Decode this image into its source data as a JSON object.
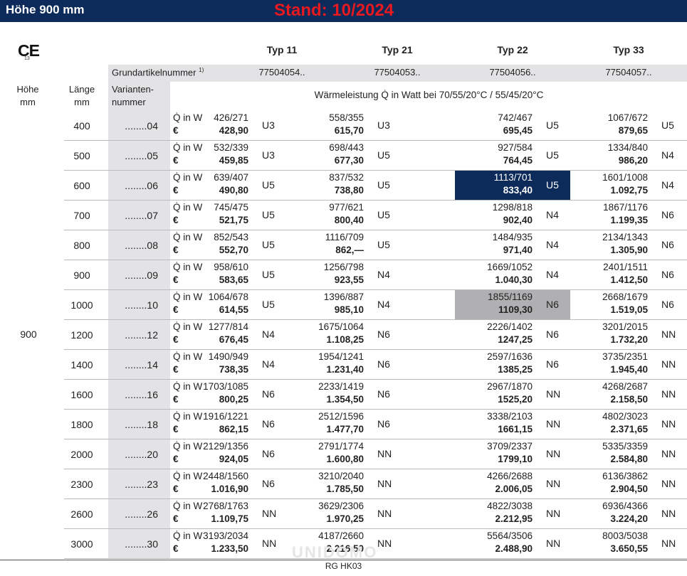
{
  "header": {
    "title": "Höhe 900 mm",
    "stand": "Stand: 10/2024"
  },
  "ce": {
    "mark": "CE",
    "sub": "13"
  },
  "types": [
    "Typ 11",
    "Typ 21",
    "Typ 22",
    "Typ 33"
  ],
  "grund": {
    "label": "Grundartikelnummer",
    "sup": "1)",
    "values": [
      "77504054..",
      "77504053..",
      "77504056..",
      "77504057.."
    ]
  },
  "cols": {
    "hoehe": "Höhe",
    "hoehe_unit": "mm",
    "laenge": "Länge",
    "laenge_unit": "mm",
    "variant1": "Varianten-",
    "variant2": "nummer"
  },
  "waerme": "Wärmeleistung Q̇ in Watt bei 70/55/20°C / 55/45/20°C",
  "hoehe_value": "900",
  "q_label": "Q̇ in W",
  "eur_label": "€",
  "rows": [
    {
      "len": "400",
      "var": "........04",
      "c": [
        [
          "426/271",
          "428,90",
          "U3"
        ],
        [
          "558/355",
          "615,70",
          "U3"
        ],
        [
          "742/467",
          "695,45",
          "U5"
        ],
        [
          "1067/672",
          "879,65",
          "U5"
        ]
      ]
    },
    {
      "len": "500",
      "var": "........05",
      "c": [
        [
          "532/339",
          "459,85",
          "U3"
        ],
        [
          "698/443",
          "677,30",
          "U5"
        ],
        [
          "927/584",
          "764,45",
          "U5"
        ],
        [
          "1334/840",
          "986,20",
          "N4"
        ]
      ]
    },
    {
      "len": "600",
      "var": "........06",
      "c": [
        [
          "639/407",
          "490,80",
          "U5"
        ],
        [
          "837/532",
          "738,80",
          "U5"
        ],
        [
          "1113/701",
          "833,40",
          "U5"
        ],
        [
          "1601/1008",
          "1.092,75",
          "N4"
        ]
      ]
    },
    {
      "len": "700",
      "var": "........07",
      "c": [
        [
          "745/475",
          "521,75",
          "U5"
        ],
        [
          "977/621",
          "800,40",
          "U5"
        ],
        [
          "1298/818",
          "902,40",
          "N4"
        ],
        [
          "1867/1176",
          "1.199,35",
          "N6"
        ]
      ]
    },
    {
      "len": "800",
      "var": "........08",
      "c": [
        [
          "852/543",
          "552,70",
          "U5"
        ],
        [
          "1116/709",
          "862,—",
          "U5"
        ],
        [
          "1484/935",
          "971,40",
          "N4"
        ],
        [
          "2134/1343",
          "1.305,90",
          "N6"
        ]
      ]
    },
    {
      "len": "900",
      "var": "........09",
      "c": [
        [
          "958/610",
          "583,65",
          "U5"
        ],
        [
          "1256/798",
          "923,55",
          "N4"
        ],
        [
          "1669/1052",
          "1.040,30",
          "N4"
        ],
        [
          "2401/1511",
          "1.412,50",
          "N6"
        ]
      ]
    },
    {
      "len": "1000",
      "var": "........10",
      "c": [
        [
          "1064/678",
          "614,55",
          "U5"
        ],
        [
          "1396/887",
          "985,10",
          "N4"
        ],
        [
          "1855/1169",
          "1109,30",
          "N6"
        ],
        [
          "2668/1679",
          "1.519,05",
          "N6"
        ]
      ]
    },
    {
      "len": "1200",
      "var": "........12",
      "c": [
        [
          "1277/814",
          "676,45",
          "N4"
        ],
        [
          "1675/1064",
          "1.108,25",
          "N6"
        ],
        [
          "2226/1402",
          "1247,25",
          "N6"
        ],
        [
          "3201/2015",
          "1.732,20",
          "NN"
        ]
      ]
    },
    {
      "len": "1400",
      "var": "........14",
      "c": [
        [
          "1490/949",
          "738,35",
          "N4"
        ],
        [
          "1954/1241",
          "1.231,40",
          "N6"
        ],
        [
          "2597/1636",
          "1385,25",
          "N6"
        ],
        [
          "3735/2351",
          "1.945,40",
          "NN"
        ]
      ]
    },
    {
      "len": "1600",
      "var": "........16",
      "c": [
        [
          "1703/1085",
          "800,25",
          "N6"
        ],
        [
          "2233/1419",
          "1.354,50",
          "N6"
        ],
        [
          "2967/1870",
          "1525,20",
          "NN"
        ],
        [
          "4268/2687",
          "2.158,50",
          "NN"
        ]
      ]
    },
    {
      "len": "1800",
      "var": "........18",
      "c": [
        [
          "1916/1221",
          "862,15",
          "N6"
        ],
        [
          "2512/1596",
          "1.477,70",
          "N6"
        ],
        [
          "3338/2103",
          "1661,15",
          "NN"
        ],
        [
          "4802/3023",
          "2.371,65",
          "NN"
        ]
      ]
    },
    {
      "len": "2000",
      "var": "........20",
      "c": [
        [
          "2129/1356",
          "924,05",
          "N6"
        ],
        [
          "2791/1774",
          "1.600,80",
          "NN"
        ],
        [
          "3709/2337",
          "1799,10",
          "NN"
        ],
        [
          "5335/3359",
          "2.584,80",
          "NN"
        ]
      ]
    },
    {
      "len": "2300",
      "var": "........23",
      "c": [
        [
          "2448/1560",
          "1.016,90",
          "N6"
        ],
        [
          "3210/2040",
          "1.785,50",
          "NN"
        ],
        [
          "4266/2688",
          "2.006,05",
          "NN"
        ],
        [
          "6136/3862",
          "2.904,50",
          "NN"
        ]
      ]
    },
    {
      "len": "2600",
      "var": "........26",
      "c": [
        [
          "2768/1763",
          "1.109,75",
          "NN"
        ],
        [
          "3629/2306",
          "1.970,25",
          "NN"
        ],
        [
          "4822/3038",
          "2.212,95",
          "NN"
        ],
        [
          "6936/4366",
          "3.224,20",
          "NN"
        ]
      ]
    },
    {
      "len": "3000",
      "var": "........30",
      "c": [
        [
          "3193/2034",
          "1.233,50",
          "NN"
        ],
        [
          "4187/2660",
          "2.216,50",
          "NN"
        ],
        [
          "5564/3506",
          "2.488,90",
          "NN"
        ],
        [
          "8003/5038",
          "3.650,55",
          "NN"
        ]
      ]
    }
  ],
  "highlights": [
    {
      "row": 2,
      "col": 2,
      "color": "#0c2a5a"
    },
    {
      "row": 6,
      "col": 2,
      "color": "#b0b0b2"
    }
  ],
  "watermark": "UNIDOMO",
  "footer": "RG HK03"
}
